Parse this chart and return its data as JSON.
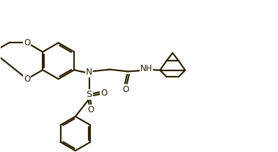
{
  "background_color": "#ffffff",
  "line_color": "#2b2000",
  "line_width": 1.6,
  "figsize": [
    3.98,
    2.18
  ],
  "dpi": 100,
  "xlim": [
    0,
    11
  ],
  "ylim": [
    0,
    6
  ]
}
